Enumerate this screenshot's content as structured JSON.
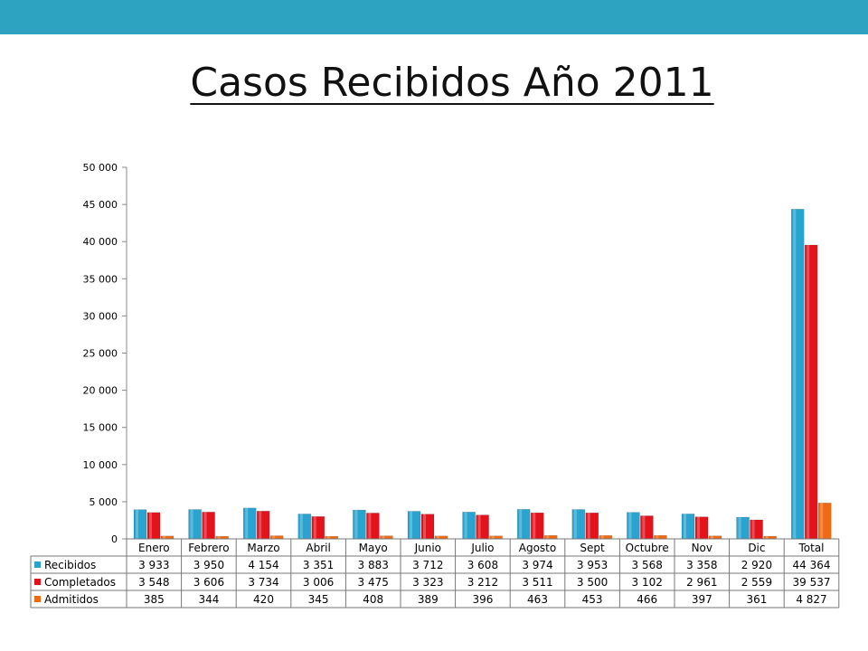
{
  "title": "Casos Recibidos Año 2011",
  "colors": {
    "header_bar": "#2ea3c1",
    "recibidos": "#29a3cf",
    "completados": "#e3121b",
    "admitidos": "#ef6a13"
  },
  "chart_data": {
    "type": "bar",
    "title": "",
    "xlabel": "",
    "ylabel": "",
    "ylim": [
      0,
      50000
    ],
    "yticks": [
      0,
      5000,
      10000,
      15000,
      20000,
      25000,
      30000,
      35000,
      40000,
      45000,
      50000
    ],
    "ytick_labels": [
      "0",
      "5 000",
      "10 000",
      "15 000",
      "20 000",
      "25 000",
      "30 000",
      "35 000",
      "40 000",
      "45 000",
      "50 000"
    ],
    "categories": [
      "Enero",
      "Febrero",
      "Marzo",
      "Abril",
      "Mayo",
      "Junio",
      "Julio",
      "Agosto",
      "Sept",
      "Octubre",
      "Nov",
      "Dic",
      "Total"
    ],
    "series": [
      {
        "name": "Recibidos",
        "color": "#29a3cf",
        "values": [
          3933,
          3950,
          4154,
          3351,
          3883,
          3712,
          3608,
          3974,
          3953,
          3568,
          3358,
          2920,
          44364
        ],
        "labels": [
          "3 933",
          "3 950",
          "4 154",
          "3 351",
          "3 883",
          "3 712",
          "3 608",
          "3 974",
          "3 953",
          "3 568",
          "3 358",
          "2 920",
          "44 364"
        ]
      },
      {
        "name": "Completados",
        "color": "#e3121b",
        "values": [
          3548,
          3606,
          3734,
          3006,
          3475,
          3323,
          3212,
          3511,
          3500,
          3102,
          2961,
          2559,
          39537
        ],
        "labels": [
          "3 548",
          "3 606",
          "3 734",
          "3 006",
          "3 475",
          "3 323",
          "3 212",
          "3 511",
          "3 500",
          "3 102",
          "2 961",
          "2 559",
          "39 537"
        ]
      },
      {
        "name": "Admitidos",
        "color": "#ef6a13",
        "values": [
          385,
          344,
          420,
          345,
          408,
          389,
          396,
          463,
          453,
          466,
          397,
          361,
          4827
        ],
        "labels": [
          "385",
          "344",
          "420",
          "345",
          "408",
          "389",
          "396",
          "463",
          "453",
          "466",
          "397",
          "361",
          "4 827"
        ]
      }
    ],
    "legend": "data-table",
    "grid": false
  }
}
